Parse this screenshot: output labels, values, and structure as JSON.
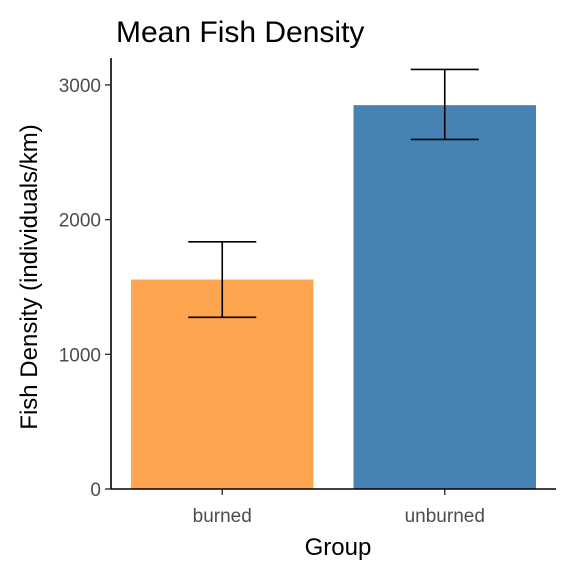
{
  "chart_data": {
    "type": "bar",
    "title": "Mean Fish Density",
    "xlabel": "Group",
    "ylabel": "Fish Density (individuals/km)",
    "categories": [
      "burned",
      "unburned"
    ],
    "values": [
      1555,
      2850
    ],
    "error_low": [
      1275,
      2595
    ],
    "error_high": [
      1835,
      3115
    ],
    "colors": [
      "#FDA54F",
      "#4682B4"
    ],
    "ylim": [
      0,
      3200
    ],
    "yticks": [
      0,
      1000,
      2000,
      3000
    ],
    "grid": false,
    "legend": "none"
  }
}
